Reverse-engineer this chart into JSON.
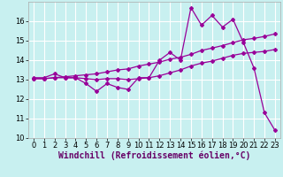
{
  "xlabel": "Windchill (Refroidissement éolien,°C)",
  "bg_color": "#c8f0f0",
  "line_color": "#990099",
  "grid_color": "#ffffff",
  "xlim": [
    -0.5,
    23.5
  ],
  "ylim": [
    10,
    17
  ],
  "xticks": [
    0,
    1,
    2,
    3,
    4,
    5,
    6,
    7,
    8,
    9,
    10,
    11,
    12,
    13,
    14,
    15,
    16,
    17,
    18,
    19,
    20,
    21,
    22,
    23
  ],
  "yticks": [
    10,
    11,
    12,
    13,
    14,
    15,
    16
  ],
  "series1_x": [
    0,
    1,
    2,
    3,
    4,
    5,
    6,
    7,
    8,
    9,
    10,
    11,
    12,
    13,
    14,
    15,
    16,
    17,
    18,
    19,
    20,
    21,
    22,
    23
  ],
  "series1_y": [
    13.1,
    13.1,
    13.3,
    13.1,
    13.1,
    12.8,
    12.4,
    12.8,
    12.6,
    12.5,
    13.1,
    13.1,
    14.0,
    14.4,
    14.0,
    16.7,
    15.8,
    16.3,
    15.7,
    16.1,
    14.9,
    13.6,
    11.3,
    10.4
  ],
  "series2_x": [
    0,
    1,
    2,
    3,
    4,
    5,
    6,
    7,
    8,
    9,
    10,
    11,
    12,
    13,
    14,
    15,
    16,
    17,
    18,
    19,
    20,
    21,
    22,
    23
  ],
  "series2_y": [
    13.05,
    13.05,
    13.1,
    13.15,
    13.2,
    13.25,
    13.3,
    13.4,
    13.5,
    13.55,
    13.7,
    13.8,
    13.9,
    14.05,
    14.15,
    14.3,
    14.5,
    14.62,
    14.75,
    14.9,
    15.05,
    15.12,
    15.22,
    15.35
  ],
  "series3_x": [
    0,
    1,
    2,
    3,
    4,
    5,
    6,
    7,
    8,
    9,
    10,
    11,
    12,
    13,
    14,
    15,
    16,
    17,
    18,
    19,
    20,
    21,
    22,
    23
  ],
  "series3_y": [
    13.05,
    13.05,
    13.1,
    13.1,
    13.1,
    13.05,
    13.0,
    13.05,
    13.05,
    13.0,
    13.05,
    13.1,
    13.2,
    13.35,
    13.5,
    13.7,
    13.85,
    13.95,
    14.1,
    14.25,
    14.35,
    14.4,
    14.45,
    14.55
  ],
  "tick_fontsize": 6,
  "xlabel_fontsize": 7
}
